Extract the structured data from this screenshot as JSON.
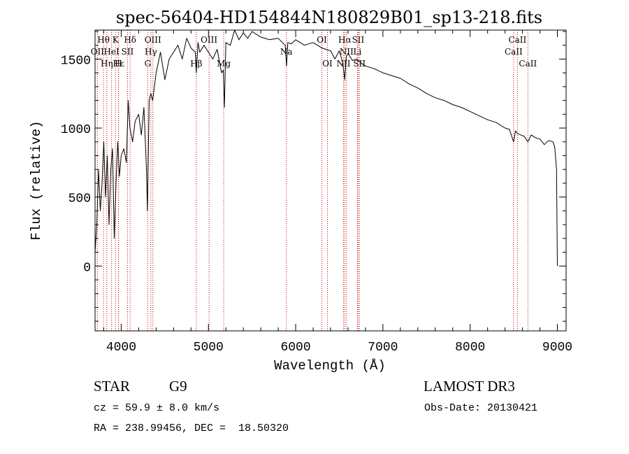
{
  "chart_data": {
    "type": "line",
    "title": "spec-56404-HD154844N180829B01_sp13-218.fits",
    "xlabel": "Wavelength (Å)",
    "ylabel": "Flux (relative)",
    "xlim": [
      3700,
      9100
    ],
    "ylim": [
      -470,
      1710
    ],
    "x_ticks": [
      4000,
      5000,
      6000,
      7000,
      8000,
      9000
    ],
    "y_ticks": [
      0,
      500,
      1000,
      1500
    ],
    "series": [
      {
        "name": "flux",
        "x": [
          3700,
          3720,
          3740,
          3760,
          3780,
          3800,
          3820,
          3840,
          3860,
          3880,
          3900,
          3920,
          3940,
          3960,
          3980,
          4000,
          4030,
          4060,
          4080,
          4100,
          4130,
          4160,
          4200,
          4230,
          4260,
          4290,
          4300,
          4320,
          4340,
          4360,
          4400,
          4450,
          4500,
          4550,
          4600,
          4650,
          4700,
          4750,
          4800,
          4850,
          4861,
          4880,
          4900,
          4950,
          5000,
          5050,
          5100,
          5150,
          5170,
          5183,
          5200,
          5250,
          5300,
          5350,
          5400,
          5450,
          5500,
          5600,
          5700,
          5800,
          5880,
          5895,
          5910,
          5950,
          6000,
          6100,
          6200,
          6300,
          6400,
          6450,
          6500,
          6540,
          6563,
          6580,
          6600,
          6650,
          6700,
          6750,
          6800,
          6900,
          7000,
          7100,
          7200,
          7300,
          7400,
          7500,
          7600,
          7700,
          7800,
          7900,
          8000,
          8100,
          8200,
          8300,
          8400,
          8450,
          8498,
          8520,
          8542,
          8580,
          8620,
          8662,
          8700,
          8750,
          8800,
          8850,
          8900,
          8950,
          8970,
          8990,
          9000
        ],
        "values": [
          100,
          300,
          700,
          400,
          600,
          900,
          500,
          800,
          300,
          700,
          850,
          200,
          600,
          900,
          650,
          800,
          850,
          750,
          1200,
          1000,
          900,
          1050,
          1100,
          950,
          1150,
          700,
          400,
          1200,
          1250,
          1200,
          1400,
          1550,
          1350,
          1500,
          1550,
          1600,
          1500,
          1650,
          1580,
          1550,
          1400,
          1620,
          1550,
          1600,
          1550,
          1500,
          1570,
          1400,
          1420,
          1150,
          1620,
          1600,
          1710,
          1640,
          1690,
          1650,
          1700,
          1660,
          1640,
          1650,
          1600,
          1450,
          1620,
          1610,
          1640,
          1600,
          1620,
          1580,
          1560,
          1500,
          1560,
          1470,
          1350,
          1520,
          1540,
          1490,
          1500,
          1470,
          1450,
          1430,
          1400,
          1380,
          1360,
          1320,
          1290,
          1250,
          1220,
          1200,
          1170,
          1150,
          1120,
          1090,
          1060,
          1040,
          1000,
          990,
          900,
          980,
          960,
          950,
          940,
          900,
          950,
          930,
          920,
          880,
          910,
          900,
          860,
          700,
          0
        ]
      }
    ],
    "line_markers": [
      {
        "label": "Hθ",
        "wavelength": 3797,
        "row": 1
      },
      {
        "label": "OII",
        "wavelength": 3727,
        "row": 2
      },
      {
        "label": "Hη",
        "wavelength": 3835,
        "row": 3
      },
      {
        "label": "K",
        "wavelength": 3934,
        "row": 1
      },
      {
        "label": "HeI",
        "wavelength": 3889,
        "row": 2
      },
      {
        "label": "Hε",
        "wavelength": 3970,
        "row": 3
      },
      {
        "label": "H",
        "wavelength": 3968,
        "row": 3
      },
      {
        "label": "SII",
        "wavelength": 4072,
        "row": 2
      },
      {
        "label": "Hδ",
        "wavelength": 4102,
        "row": 1
      },
      {
        "label": "OIII",
        "wavelength": 4363,
        "row": 1
      },
      {
        "label": "Hγ",
        "wavelength": 4340,
        "row": 2
      },
      {
        "label": "G",
        "wavelength": 4304,
        "row": 3
      },
      {
        "label": "Hβ",
        "wavelength": 4861,
        "row": 3
      },
      {
        "label": "OIII",
        "wavelength": 5007,
        "row": 1
      },
      {
        "label": "Mg",
        "wavelength": 5175,
        "row": 3
      },
      {
        "label": "Na",
        "wavelength": 5893,
        "row": 2
      },
      {
        "label": "OI",
        "wavelength": 6300,
        "row": 1
      },
      {
        "label": "OI",
        "wavelength": 6364,
        "row": 3
      },
      {
        "label": "Hα",
        "wavelength": 6563,
        "row": 1
      },
      {
        "label": "NII",
        "wavelength": 6583,
        "row": 2
      },
      {
        "label": "NII",
        "wavelength": 6548,
        "row": 3
      },
      {
        "label": "SII",
        "wavelength": 6716,
        "row": 1
      },
      {
        "label": "Li",
        "wavelength": 6708,
        "row": 2
      },
      {
        "label": "SII",
        "wavelength": 6731,
        "row": 3
      },
      {
        "label": "CaII",
        "wavelength": 8542,
        "row": 1
      },
      {
        "label": "CaII",
        "wavelength": 8498,
        "row": 2
      },
      {
        "label": "CaII",
        "wavelength": 8662,
        "row": 3
      }
    ],
    "line_color": "#000000",
    "marker_color": "#cc0000"
  },
  "info": {
    "object_class": "STAR",
    "subclass": "G9",
    "survey": "LAMOST DR3",
    "cz": "cz = 59.9 ± 8.0 km/s",
    "obs_date": "Obs-Date: 20130421",
    "coords": "RA = 238.99456, DEC =  18.50320"
  }
}
